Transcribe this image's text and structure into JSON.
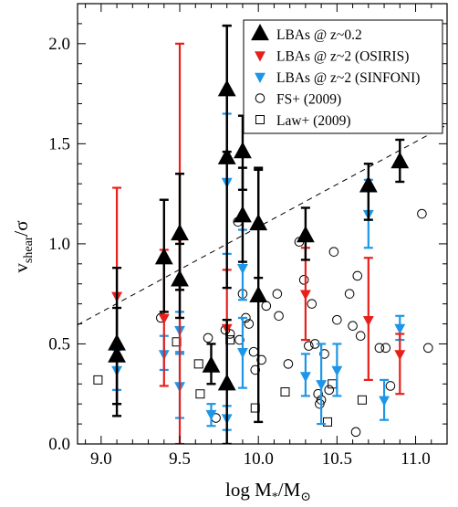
{
  "chart_data": {
    "type": "scatter",
    "xlabel": {
      "main": "log M",
      "sub1": "*",
      "mid": "/M",
      "sub2": "⊙"
    },
    "ylabel": {
      "main": "v",
      "sub": "shear",
      "end": "/σ"
    },
    "xlim": [
      8.85,
      11.2
    ],
    "ylim": [
      0.0,
      2.2
    ],
    "xticks": [
      9.0,
      9.5,
      10.0,
      10.5,
      11.0
    ],
    "yticks": [
      0.0,
      0.5,
      1.0,
      1.5,
      2.0
    ],
    "xtick_labels": [
      "9.0",
      "9.5",
      "10.0",
      "10.5",
      "11.0"
    ],
    "ytick_labels": [
      "0.0",
      "0.5",
      "1.0",
      "1.5",
      "2.0"
    ],
    "grid": false,
    "legend_position": "top-right",
    "reference_line": {
      "style": "dashed",
      "x": [
        8.85,
        11.2
      ],
      "y": [
        0.595,
        1.595
      ]
    },
    "series": [
      {
        "name": "LBAs @ z~0.2",
        "marker": "triangle-up",
        "color": "#000000",
        "points": [
          {
            "x": 9.1,
            "y": 0.5,
            "ylo": 0.14,
            "yhi": 0.88
          },
          {
            "x": 9.1,
            "y": 0.44,
            "ylo": 0.2,
            "yhi": 0.68
          },
          {
            "x": 9.4,
            "y": 0.93,
            "ylo": 0.66,
            "yhi": 1.22
          },
          {
            "x": 9.5,
            "y": 1.05,
            "ylo": 0.77,
            "yhi": 1.35
          },
          {
            "x": 9.5,
            "y": 0.82,
            "ylo": 0.63,
            "yhi": 1.0
          },
          {
            "x": 9.7,
            "y": 0.39,
            "ylo": 0.3,
            "yhi": 0.5
          },
          {
            "x": 9.8,
            "y": 1.77,
            "ylo": 1.46,
            "yhi": 2.09
          },
          {
            "x": 9.8,
            "y": 1.43,
            "ylo": 0.78,
            "yhi": 2.09
          },
          {
            "x": 9.8,
            "y": 0.3,
            "ylo": 0.0,
            "yhi": 0.62
          },
          {
            "x": 9.9,
            "y": 1.46,
            "ylo": 1.27,
            "yhi": 1.64
          },
          {
            "x": 9.9,
            "y": 1.14,
            "ylo": 0.91,
            "yhi": 1.38
          },
          {
            "x": 10.0,
            "y": 1.1,
            "ylo": 0.83,
            "yhi": 1.37
          },
          {
            "x": 10.0,
            "y": 0.74,
            "ylo": 0.11,
            "yhi": 1.38
          },
          {
            "x": 10.3,
            "y": 1.04,
            "ylo": 0.92,
            "yhi": 1.18
          },
          {
            "x": 10.7,
            "y": 1.29,
            "ylo": 1.12,
            "yhi": 1.4
          },
          {
            "x": 10.9,
            "y": 1.41,
            "ylo": 1.31,
            "yhi": 1.52
          }
        ]
      },
      {
        "name": "LBAs @ z~2 (OSIRIS)",
        "marker": "triangle-down",
        "color": "#e8201c",
        "points": [
          {
            "x": 9.1,
            "y": 0.74,
            "ylo": 0.2,
            "yhi": 1.28
          },
          {
            "x": 9.4,
            "y": 0.63,
            "ylo": 0.29,
            "yhi": 0.97
          },
          {
            "x": 9.5,
            "y": 1.03,
            "ylo": 0.0,
            "yhi": 2.0
          },
          {
            "x": 9.8,
            "y": 0.58,
            "ylo": 0.3,
            "yhi": 0.87
          },
          {
            "x": 10.3,
            "y": 0.75,
            "ylo": 0.52,
            "yhi": 0.98
          },
          {
            "x": 10.7,
            "y": 0.62,
            "ylo": 0.32,
            "yhi": 0.93
          },
          {
            "x": 10.9,
            "y": 0.45,
            "ylo": 0.25,
            "yhi": 0.55
          }
        ]
      },
      {
        "name": "LBAs @ z~2 (SINFONI)",
        "marker": "triangle-down",
        "color": "#1e96e8",
        "points": [
          {
            "x": 9.1,
            "y": 0.37,
            "ylo": 0.27,
            "yhi": 0.47
          },
          {
            "x": 9.4,
            "y": 0.45,
            "ylo": 0.37,
            "yhi": 0.54
          },
          {
            "x": 9.5,
            "y": 0.29,
            "ylo": 0.13,
            "yhi": 0.45
          },
          {
            "x": 9.5,
            "y": 0.57,
            "ylo": 0.46,
            "yhi": 0.66
          },
          {
            "x": 9.7,
            "y": 0.15,
            "ylo": 0.09,
            "yhi": 0.2
          },
          {
            "x": 9.8,
            "y": 1.31,
            "ylo": 0.95,
            "yhi": 1.65
          },
          {
            "x": 9.8,
            "y": 0.13,
            "ylo": 0.07,
            "yhi": 0.19
          },
          {
            "x": 9.9,
            "y": 0.88,
            "ylo": 0.72,
            "yhi": 1.07
          },
          {
            "x": 9.9,
            "y": 0.46,
            "ylo": 0.28,
            "yhi": 0.63
          },
          {
            "x": 10.3,
            "y": 0.34,
            "ylo": 0.24,
            "yhi": 0.45
          },
          {
            "x": 10.4,
            "y": 0.3,
            "ylo": 0.1,
            "yhi": 0.5
          },
          {
            "x": 10.5,
            "y": 0.37,
            "ylo": 0.24,
            "yhi": 0.5
          },
          {
            "x": 10.7,
            "y": 1.15,
            "ylo": 0.98,
            "yhi": 1.32
          },
          {
            "x": 10.8,
            "y": 0.22,
            "ylo": 0.12,
            "yhi": 0.32
          },
          {
            "x": 10.9,
            "y": 0.58,
            "ylo": 0.52,
            "yhi": 0.64
          }
        ]
      },
      {
        "name": "FS+ (2009)",
        "marker": "circle-open",
        "color": "#000000",
        "points": [
          {
            "x": 9.38,
            "y": 0.63
          },
          {
            "x": 9.68,
            "y": 0.53
          },
          {
            "x": 9.73,
            "y": 0.13
          },
          {
            "x": 9.79,
            "y": 0.57
          },
          {
            "x": 9.82,
            "y": 0.55
          },
          {
            "x": 9.87,
            "y": 1.11
          },
          {
            "x": 9.88,
            "y": 0.52
          },
          {
            "x": 9.9,
            "y": 0.75
          },
          {
            "x": 9.92,
            "y": 0.63
          },
          {
            "x": 9.94,
            "y": 0.6
          },
          {
            "x": 9.97,
            "y": 0.46
          },
          {
            "x": 9.98,
            "y": 0.37
          },
          {
            "x": 10.02,
            "y": 0.42
          },
          {
            "x": 10.05,
            "y": 0.69
          },
          {
            "x": 10.12,
            "y": 0.75
          },
          {
            "x": 10.13,
            "y": 0.64
          },
          {
            "x": 10.19,
            "y": 0.4
          },
          {
            "x": 10.26,
            "y": 1.01
          },
          {
            "x": 10.29,
            "y": 0.82
          },
          {
            "x": 10.32,
            "y": 0.49
          },
          {
            "x": 10.34,
            "y": 0.7
          },
          {
            "x": 10.36,
            "y": 0.5
          },
          {
            "x": 10.38,
            "y": 0.25
          },
          {
            "x": 10.39,
            "y": 0.2
          },
          {
            "x": 10.4,
            "y": 0.22
          },
          {
            "x": 10.42,
            "y": 0.45
          },
          {
            "x": 10.45,
            "y": 0.27
          },
          {
            "x": 10.48,
            "y": 0.96
          },
          {
            "x": 10.5,
            "y": 0.62
          },
          {
            "x": 10.58,
            "y": 0.75
          },
          {
            "x": 10.6,
            "y": 0.59
          },
          {
            "x": 10.62,
            "y": 0.06
          },
          {
            "x": 10.63,
            "y": 0.84
          },
          {
            "x": 10.65,
            "y": 0.54
          },
          {
            "x": 10.77,
            "y": 0.48
          },
          {
            "x": 10.81,
            "y": 0.48
          },
          {
            "x": 10.84,
            "y": 0.29
          },
          {
            "x": 11.04,
            "y": 1.15
          },
          {
            "x": 11.08,
            "y": 0.48
          }
        ]
      },
      {
        "name": "Law+ (2009)",
        "marker": "square-open",
        "color": "#000000",
        "points": [
          {
            "x": 8.98,
            "y": 0.32
          },
          {
            "x": 9.48,
            "y": 0.51
          },
          {
            "x": 9.62,
            "y": 0.4
          },
          {
            "x": 9.63,
            "y": 0.25
          },
          {
            "x": 9.82,
            "y": 0.52
          },
          {
            "x": 9.98,
            "y": 0.18
          },
          {
            "x": 10.17,
            "y": 0.26
          },
          {
            "x": 10.44,
            "y": 0.11
          },
          {
            "x": 10.47,
            "y": 0.3
          },
          {
            "x": 10.66,
            "y": 0.22
          }
        ]
      }
    ]
  }
}
